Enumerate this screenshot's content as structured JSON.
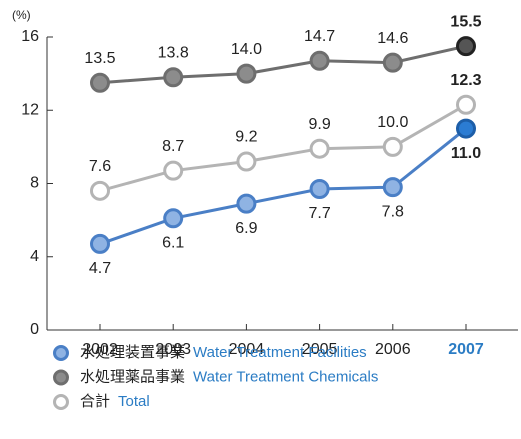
{
  "chart_data": {
    "type": "line",
    "ylabel": "(%)",
    "categories": [
      "2002",
      "2003",
      "2004",
      "2005",
      "2006",
      "2007"
    ],
    "ylim": [
      0,
      16
    ],
    "yticks": [
      0,
      4,
      8,
      12,
      16
    ],
    "series": [
      {
        "name": "水処理装置事業",
        "name_en": "Water Treatment Facilities",
        "color": "#4a7fc6",
        "marker_fill": "#8fb3e3",
        "values": [
          4.7,
          6.1,
          6.9,
          7.7,
          7.8,
          11.0
        ],
        "value_labels": [
          "4.7",
          "6.1",
          "6.9",
          "7.7",
          "7.8",
          "11.0"
        ],
        "label_side": "below"
      },
      {
        "name": "水処理薬品事業",
        "name_en": "Water Treatment Chemicals",
        "color": "#6e6e6e",
        "marker_fill": "#8c8c8c",
        "values": [
          13.5,
          13.8,
          14.0,
          14.7,
          14.6,
          15.5
        ],
        "value_labels": [
          "13.5",
          "13.8",
          "14.0",
          "14.7",
          "14.6",
          "15.5"
        ],
        "label_side": "above"
      },
      {
        "name": "合計",
        "name_en": "Total",
        "color": "#b4b4b4",
        "marker_fill": "#ffffff",
        "values": [
          7.6,
          8.7,
          9.2,
          9.9,
          10.0,
          12.3
        ],
        "value_labels": [
          "7.6",
          "8.7",
          "9.2",
          "9.9",
          "10.0",
          "12.3"
        ],
        "label_side": "above"
      }
    ]
  }
}
